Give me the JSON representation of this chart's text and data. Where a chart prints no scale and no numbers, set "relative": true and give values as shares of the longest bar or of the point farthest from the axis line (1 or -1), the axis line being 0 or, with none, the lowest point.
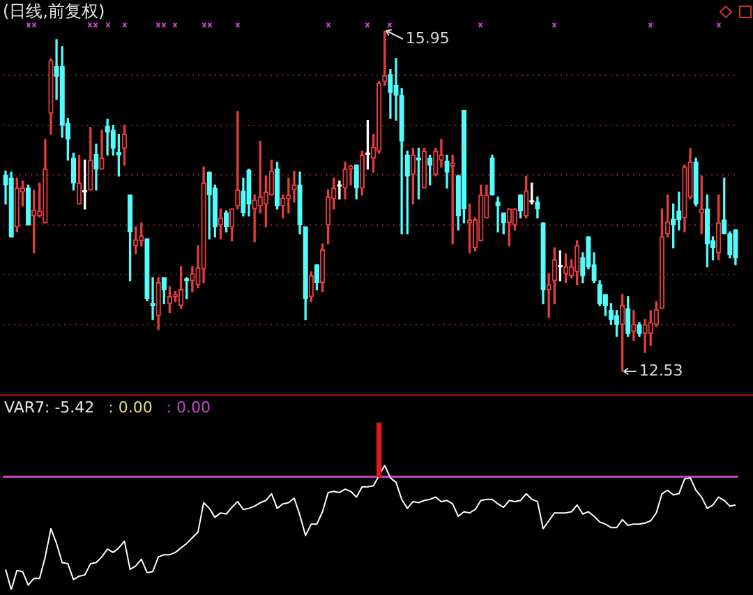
{
  "chart_data": [
    {
      "type": "candlestick",
      "title": "(日线,前复权)",
      "categories": [
        null,
        null,
        null,
        null,
        null,
        null,
        null,
        null,
        null,
        null,
        null,
        null,
        null,
        null,
        null,
        null,
        null,
        null,
        null,
        null,
        null,
        null,
        null,
        null,
        null,
        null,
        null,
        null,
        null,
        null,
        null,
        null,
        null,
        null,
        null,
        null,
        null,
        null,
        null,
        null,
        null,
        null,
        null,
        null,
        null,
        null,
        null,
        null,
        null,
        null,
        null,
        null,
        null,
        null,
        null,
        null,
        null,
        null,
        null,
        null,
        null,
        null,
        null,
        null,
        null,
        null,
        null,
        null,
        null,
        null,
        null,
        null,
        null,
        null,
        null,
        null,
        null,
        null,
        null,
        null,
        null,
        null,
        null,
        null,
        null,
        null,
        null,
        null,
        null,
        null,
        null,
        null,
        null,
        null,
        null,
        null,
        null,
        null,
        null,
        null,
        null,
        null,
        null,
        null,
        null,
        null,
        null,
        null,
        null,
        null,
        null,
        null,
        null,
        null,
        null,
        null,
        null,
        null,
        null,
        null,
        null,
        null,
        null,
        null,
        null,
        null,
        null,
        null,
        null,
        null
      ],
      "ohlc": [
        [
          14.5,
          14.54,
          14.21,
          14.4
        ],
        [
          14.47,
          14.53,
          13.88,
          13.88
        ],
        [
          13.98,
          14.47,
          13.93,
          14.37
        ],
        [
          14.33,
          14.44,
          14.19,
          14.37
        ],
        [
          14.37,
          14.4,
          14.0,
          14.0
        ],
        [
          14.09,
          14.35,
          13.72,
          14.15
        ],
        [
          14.09,
          14.42,
          14.08,
          14.14
        ],
        [
          14.02,
          14.86,
          14.02,
          14.56
        ],
        [
          15.12,
          15.67,
          14.91,
          15.65
        ],
        [
          15.59,
          15.86,
          15.26,
          15.49
        ],
        [
          15.59,
          15.79,
          14.88,
          15.0
        ],
        [
          15.02,
          15.07,
          14.65,
          14.86
        ],
        [
          14.67,
          14.72,
          14.35,
          14.42
        ],
        [
          14.21,
          14.7,
          14.21,
          14.42
        ],
        [
          14.33,
          14.65,
          14.16,
          14.33
        ],
        [
          14.35,
          14.98,
          14.35,
          14.65
        ],
        [
          14.71,
          14.81,
          14.35,
          14.56
        ],
        [
          14.56,
          14.95,
          14.56,
          14.67
        ],
        [
          14.99,
          15.06,
          14.7,
          14.93
        ],
        [
          14.95,
          15.0,
          14.7,
          14.77
        ],
        [
          14.73,
          14.91,
          14.49,
          14.7
        ],
        [
          14.77,
          15.0,
          14.6,
          14.91
        ],
        [
          14.3,
          14.3,
          13.44,
          13.93
        ],
        [
          13.79,
          13.98,
          13.71,
          13.85
        ],
        [
          13.84,
          14.02,
          13.79,
          13.89
        ],
        [
          13.86,
          13.86,
          13.24,
          13.26
        ],
        [
          13.21,
          13.47,
          13.05,
          13.19
        ],
        [
          13.09,
          13.47,
          12.95,
          13.42
        ],
        [
          13.47,
          13.47,
          13.21,
          13.35
        ],
        [
          13.21,
          13.38,
          13.12,
          13.28
        ],
        [
          13.28,
          13.33,
          13.23,
          13.3
        ],
        [
          13.19,
          13.58,
          13.16,
          13.35
        ],
        [
          13.46,
          13.47,
          13.26,
          13.44
        ],
        [
          13.44,
          13.58,
          13.33,
          13.51
        ],
        [
          13.4,
          13.79,
          13.37,
          13.57
        ],
        [
          13.56,
          14.58,
          13.42,
          14.42
        ],
        [
          14.53,
          14.53,
          13.86,
          14.3
        ],
        [
          14.37,
          14.4,
          13.88,
          13.98
        ],
        [
          14.0,
          14.16,
          13.86,
          14.07
        ],
        [
          14.12,
          14.14,
          13.93,
          13.98
        ],
        [
          13.98,
          14.16,
          13.84,
          14.16
        ],
        [
          14.19,
          15.14,
          14.16,
          14.35
        ],
        [
          14.34,
          14.47,
          14.09,
          14.12
        ],
        [
          14.55,
          14.56,
          14.09,
          14.21
        ],
        [
          14.16,
          14.3,
          13.83,
          14.25
        ],
        [
          14.19,
          14.84,
          14.12,
          14.28
        ],
        [
          14.21,
          14.49,
          13.98,
          14.33
        ],
        [
          14.3,
          14.65,
          14.3,
          14.54
        ],
        [
          14.56,
          14.63,
          14.16,
          14.19
        ],
        [
          14.19,
          14.3,
          14.07,
          14.27
        ],
        [
          14.26,
          14.47,
          14.12,
          14.3
        ],
        [
          14.35,
          14.54,
          14.23,
          14.4
        ],
        [
          14.4,
          14.53,
          13.91,
          14.0
        ],
        [
          13.98,
          13.98,
          13.05,
          13.26
        ],
        [
          13.28,
          13.53,
          13.23,
          13.49
        ],
        [
          13.6,
          13.6,
          13.35,
          13.42
        ],
        [
          13.42,
          13.81,
          13.33,
          13.75
        ],
        [
          14.0,
          14.35,
          13.81,
          14.28
        ],
        [
          14.26,
          14.47,
          14.16,
          14.37
        ],
        [
          14.39,
          14.44,
          14.26,
          14.39
        ],
        [
          14.37,
          14.63,
          14.26,
          14.56
        ],
        [
          14.56,
          14.6,
          14.4,
          14.59
        ],
        [
          14.6,
          14.6,
          14.26,
          14.37
        ],
        [
          14.37,
          14.74,
          14.3,
          14.7
        ],
        [
          14.71,
          15.05,
          14.56,
          14.71
        ],
        [
          14.67,
          14.91,
          14.53,
          14.78
        ],
        [
          14.74,
          15.44,
          14.72,
          15.42
        ],
        [
          15.44,
          15.95,
          15.4,
          15.5
        ],
        [
          15.51,
          15.56,
          15.07,
          15.33
        ],
        [
          15.4,
          15.67,
          15.05,
          15.3
        ],
        [
          15.3,
          15.37,
          13.91,
          14.84
        ],
        [
          14.7,
          14.74,
          13.91,
          14.49
        ],
        [
          14.51,
          14.77,
          14.21,
          14.7
        ],
        [
          14.67,
          14.77,
          14.26,
          14.65
        ],
        [
          14.37,
          14.77,
          14.37,
          14.74
        ],
        [
          14.67,
          14.7,
          14.4,
          14.6
        ],
        [
          14.51,
          14.77,
          14.49,
          14.74
        ],
        [
          14.65,
          14.86,
          14.58,
          14.7
        ],
        [
          14.64,
          14.7,
          14.37,
          14.53
        ],
        [
          14.59,
          14.7,
          13.81,
          14.62
        ],
        [
          14.49,
          14.5,
          13.95,
          14.09
        ],
        [
          15.15,
          15.15,
          14.02,
          14.16
        ],
        [
          14.02,
          14.21,
          13.72,
          14.05
        ],
        [
          13.77,
          14.07,
          13.74,
          14.05
        ],
        [
          13.84,
          14.4,
          13.84,
          14.3
        ],
        [
          14.07,
          14.4,
          14.07,
          14.3
        ],
        [
          14.67,
          14.7,
          14.3,
          14.3
        ],
        [
          14.23,
          14.28,
          13.93,
          14.19
        ],
        [
          14.12,
          14.12,
          13.91,
          14.02
        ],
        [
          14.02,
          14.16,
          13.79,
          14.16
        ],
        [
          14.0,
          14.16,
          13.95,
          14.16
        ],
        [
          14.3,
          14.3,
          14.07,
          14.14
        ],
        [
          14.09,
          14.49,
          14.07,
          14.34
        ],
        [
          14.23,
          14.42,
          14.21,
          14.23
        ],
        [
          14.23,
          14.28,
          14.07,
          14.16
        ],
        [
          14.02,
          14.02,
          13.21,
          13.35
        ],
        [
          13.35,
          13.51,
          13.07,
          13.4
        ],
        [
          13.44,
          13.77,
          13.21,
          13.65
        ],
        [
          13.58,
          13.74,
          13.44,
          13.58
        ],
        [
          13.51,
          13.71,
          13.42,
          13.58
        ],
        [
          13.49,
          13.65,
          13.47,
          13.58
        ],
        [
          13.53,
          13.84,
          13.4,
          13.79
        ],
        [
          13.67,
          13.72,
          13.42,
          13.49
        ],
        [
          13.88,
          13.88,
          13.56,
          13.58
        ],
        [
          13.6,
          13.72,
          13.42,
          13.44
        ],
        [
          13.4,
          13.44,
          13.19,
          13.21
        ],
        [
          13.3,
          13.3,
          13.09,
          13.19
        ],
        [
          13.14,
          13.21,
          13.0,
          13.05
        ],
        [
          13.09,
          13.14,
          12.88,
          13.0
        ],
        [
          13.0,
          13.3,
          12.53,
          13.19
        ],
        [
          13.16,
          13.28,
          12.88,
          12.91
        ],
        [
          12.93,
          13.14,
          12.84,
          13.0
        ],
        [
          13.0,
          13.02,
          12.88,
          12.91
        ],
        [
          12.91,
          13.05,
          12.72,
          13.0
        ],
        [
          12.91,
          13.14,
          12.79,
          13.02
        ],
        [
          13.0,
          13.23,
          12.98,
          13.15
        ],
        [
          13.16,
          14.16,
          13.16,
          13.88
        ],
        [
          13.91,
          14.3,
          13.88,
          14.03
        ],
        [
          14.06,
          14.21,
          13.77,
          14.0
        ],
        [
          14.14,
          14.33,
          13.95,
          14.05
        ],
        [
          14.07,
          14.6,
          13.93,
          14.58
        ],
        [
          14.28,
          14.77,
          14.26,
          14.63
        ],
        [
          14.63,
          14.67,
          14.19,
          14.21
        ],
        [
          14.12,
          14.49,
          13.91,
          14.16
        ],
        [
          14.16,
          14.3,
          13.58,
          13.81
        ],
        [
          13.84,
          13.88,
          13.65,
          13.77
        ],
        [
          13.72,
          14.3,
          13.65,
          14.02
        ],
        [
          14.05,
          14.47,
          13.91,
          13.91
        ],
        [
          13.91,
          13.93,
          13.67,
          13.7
        ],
        [
          13.95,
          13.95,
          13.6,
          13.67
        ]
      ],
      "colors": [
        "#54fcfc",
        "#54fcfc",
        "#e83c3c",
        "#e83c3c",
        "#54fcfc",
        "#e83c3c",
        "#e83c3c",
        "#e83c3c",
        "#e83c3c",
        "#54fcfc",
        "#54fcfc",
        "#54fcfc",
        "#54fcfc",
        "#e83c3c",
        "#ffffff",
        "#e83c3c",
        "#54fcfc",
        "#e83c3c",
        "#54fcfc",
        "#54fcfc",
        "#54fcfc",
        "#e83c3c",
        "#54fcfc",
        "#e83c3c",
        "#e83c3c",
        "#54fcfc",
        "#54fcfc",
        "#e83c3c",
        "#54fcfc",
        "#e83c3c",
        "#e83c3c",
        "#e83c3c",
        "#54fcfc",
        "#e83c3c",
        "#e83c3c",
        "#e83c3c",
        "#54fcfc",
        "#54fcfc",
        "#e83c3c",
        "#54fcfc",
        "#e83c3c",
        "#e83c3c",
        "#54fcfc",
        "#54fcfc",
        "#e83c3c",
        "#e83c3c",
        "#e83c3c",
        "#e83c3c",
        "#54fcfc",
        "#e83c3c",
        "#e83c3c",
        "#e83c3c",
        "#54fcfc",
        "#54fcfc",
        "#e83c3c",
        "#54fcfc",
        "#e83c3c",
        "#e83c3c",
        "#e83c3c",
        "#ffffff",
        "#e83c3c",
        "#e83c3c",
        "#54fcfc",
        "#e83c3c",
        "#ffffff",
        "#e83c3c",
        "#e83c3c",
        "#e83c3c",
        "#54fcfc",
        "#54fcfc",
        "#54fcfc",
        "#54fcfc",
        "#e83c3c",
        "#54fcfc",
        "#e83c3c",
        "#54fcfc",
        "#e83c3c",
        "#e83c3c",
        "#54fcfc",
        "#e83c3c",
        "#54fcfc",
        "#54fcfc",
        "#e83c3c",
        "#e83c3c",
        "#e83c3c",
        "#e83c3c",
        "#54fcfc",
        "#54fcfc",
        "#54fcfc",
        "#e83c3c",
        "#e83c3c",
        "#54fcfc",
        "#e83c3c",
        "#ffffff",
        "#54fcfc",
        "#54fcfc",
        "#e83c3c",
        "#e83c3c",
        "#ffffff",
        "#e83c3c",
        "#e83c3c",
        "#e83c3c",
        "#54fcfc",
        "#54fcfc",
        "#54fcfc",
        "#54fcfc",
        "#54fcfc",
        "#54fcfc",
        "#54fcfc",
        "#e83c3c",
        "#54fcfc",
        "#e83c3c",
        "#54fcfc",
        "#e83c3c",
        "#e83c3c",
        "#e83c3c",
        "#e83c3c",
        "#e83c3c",
        "#54fcfc",
        "#54fcfc",
        "#e83c3c",
        "#e83c3c",
        "#54fcfc",
        "#e83c3c",
        "#54fcfc",
        "#54fcfc",
        "#e83c3c",
        "#54fcfc",
        "#54fcfc",
        "#54fcfc"
      ],
      "yticks": [
        {
          "value": 13,
          "label": null
        },
        {
          "value": 13.5,
          "label": null
        },
        {
          "value": 14,
          "label": null
        },
        {
          "value": 14.5,
          "label": null
        },
        {
          "value": 15,
          "label": null
        },
        {
          "value": 15.5,
          "label": null
        }
      ],
      "grid": "y",
      "annotations": [
        "15.95",
        "12.53"
      ]
    },
    {
      "type": "line",
      "relative": true,
      "categories": [
        null,
        null,
        null,
        null,
        null,
        null,
        null,
        null,
        null,
        null,
        null,
        null,
        null,
        null,
        null,
        null,
        null,
        null,
        null,
        null,
        null,
        null,
        null,
        null,
        null,
        null,
        null,
        null,
        null,
        null,
        null,
        null,
        null,
        null,
        null,
        null,
        null,
        null,
        null,
        null,
        null,
        null,
        null,
        null,
        null,
        null,
        null,
        null,
        null,
        null,
        null,
        null,
        null,
        null,
        null,
        null,
        null,
        null,
        null,
        null,
        null,
        null,
        null,
        null,
        null,
        null,
        null,
        null,
        null,
        null,
        null,
        null,
        null,
        null,
        null,
        null,
        null,
        null,
        null,
        null,
        null,
        null,
        null,
        null,
        null,
        null,
        null,
        null,
        null,
        null,
        null,
        null,
        null,
        null,
        null,
        null,
        null,
        null,
        null,
        null,
        null,
        null,
        null,
        null,
        null,
        null,
        null,
        null,
        null,
        null,
        null,
        null,
        null,
        null,
        null,
        null,
        null,
        null,
        null,
        null,
        null,
        null,
        null,
        null,
        null,
        null,
        null,
        null,
        null,
        null
      ],
      "series": [
        {
          "type": "line",
          "color": "#ffffff",
          "values": [
            -0.82,
            -1,
            -0.83,
            -0.84,
            -0.96,
            -0.9,
            -0.9,
            -0.71,
            -0.46,
            -0.59,
            -0.76,
            -0.77,
            -0.91,
            -0.88,
            -0.87,
            -0.77,
            -0.76,
            -0.71,
            -0.64,
            -0.67,
            -0.63,
            -0.57,
            -0.82,
            -0.79,
            -0.73,
            -0.85,
            -0.84,
            -0.71,
            -0.69,
            -0.69,
            -0.67,
            -0.63,
            -0.59,
            -0.54,
            -0.49,
            -0.23,
            -0.28,
            -0.36,
            -0.32,
            -0.33,
            -0.27,
            -0.22,
            -0.29,
            -0.28,
            -0.26,
            -0.23,
            -0.21,
            -0.15,
            -0.28,
            -0.24,
            -0.23,
            -0.19,
            -0.34,
            -0.52,
            -0.42,
            -0.42,
            -0.31,
            -0.14,
            -0.13,
            -0.14,
            -0.11,
            -0.13,
            -0.18,
            -0.09,
            -0.09,
            -0.08,
            0.01,
            0.1,
            -0.01,
            -0.05,
            -0.2,
            -0.28,
            -0.22,
            -0.23,
            -0.21,
            -0.2,
            -0.18,
            -0.22,
            -0.21,
            -0.24,
            -0.35,
            -0.31,
            -0.32,
            -0.29,
            -0.21,
            -0.2,
            -0.2,
            -0.24,
            -0.27,
            -0.21,
            -0.22,
            -0.21,
            -0.15,
            -0.2,
            -0.22,
            -0.46,
            -0.39,
            -0.32,
            -0.32,
            -0.32,
            -0.31,
            -0.25,
            -0.33,
            -0.31,
            -0.35,
            -0.4,
            -0.42,
            -0.45,
            -0.45,
            -0.38,
            -0.43,
            -0.42,
            -0.42,
            -0.41,
            -0.39,
            -0.32,
            -0.15,
            -0.12,
            -0.16,
            -0.15,
            -0.02,
            -0.01,
            -0.12,
            -0.18,
            -0.28,
            -0.25,
            -0.18,
            -0.21,
            -0.26,
            -0.25
          ]
        },
        {
          "type": "bar",
          "color": "#e01818",
          "values": [
            null,
            null,
            null,
            null,
            null,
            null,
            null,
            null,
            null,
            null,
            null,
            null,
            null,
            null,
            null,
            null,
            null,
            null,
            null,
            null,
            null,
            null,
            null,
            null,
            null,
            null,
            null,
            null,
            null,
            null,
            null,
            null,
            null,
            null,
            null,
            null,
            null,
            null,
            null,
            null,
            null,
            null,
            null,
            null,
            null,
            null,
            null,
            null,
            null,
            null,
            null,
            null,
            null,
            null,
            null,
            null,
            null,
            null,
            null,
            null,
            null,
            null,
            null,
            null,
            null,
            null,
            0.48,
            null,
            null,
            null,
            null,
            null,
            null,
            null,
            null,
            null,
            null,
            null,
            null,
            null,
            null,
            null,
            null,
            null,
            null,
            null,
            null,
            null,
            null,
            null,
            null,
            null,
            null,
            null,
            null,
            null,
            null,
            null,
            null,
            null,
            null,
            null,
            null,
            null,
            null,
            null,
            null,
            null,
            null,
            null,
            null,
            null,
            null,
            null,
            null,
            null,
            null,
            null,
            null,
            null,
            null,
            null,
            null,
            null,
            null,
            null,
            null,
            null,
            null,
            null
          ]
        }
      ],
      "ref_lines": [
        {
          "axis": "y",
          "value": 0,
          "color": "#cc44cc"
        }
      ],
      "annotations": [
        "VAR7: -5.42",
        ": 0.00",
        ": 0.00"
      ]
    }
  ]
}
